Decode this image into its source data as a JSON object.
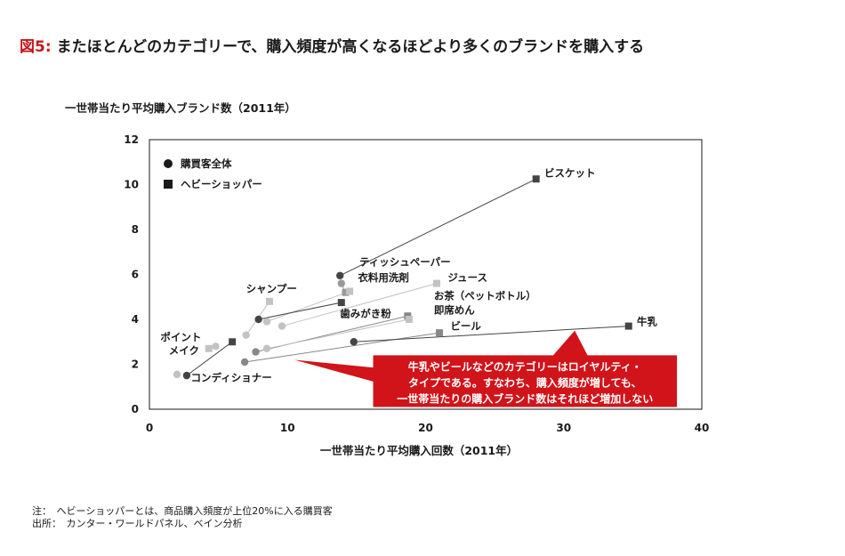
{
  "figure": {
    "label": "図5:",
    "title": "またほとんどのカテゴリーで、購入頻度が高くなるほどより多くのブランドを購入する"
  },
  "chart_data": {
    "type": "scatter",
    "ylabel": "一世帯当たり平均購入ブランド数（2011年）",
    "xlabel": "一世帯当たり平均購入回数（2011年）",
    "xlim": [
      0,
      40
    ],
    "ylim": [
      0,
      12
    ],
    "xticks": [
      "0",
      "10",
      "20",
      "30",
      "40"
    ],
    "yticks": [
      "0",
      "2",
      "4",
      "6",
      "8",
      "10",
      "12"
    ],
    "grid": false,
    "legend": [
      {
        "name": "購買客全体",
        "marker": "circle"
      },
      {
        "name": "ヘビーショッパー",
        "marker": "square"
      }
    ],
    "categories": [
      {
        "name": "ビスケット",
        "all": [
          13.8,
          5.95
        ],
        "heavy": [
          28.0,
          10.25
        ],
        "color": "#444444"
      },
      {
        "name": "ティッシュペーパー",
        "all": [
          13.9,
          5.6
        ],
        "heavy": [
          14.2,
          5.2
        ],
        "color": "#999999"
      },
      {
        "name": "衣料用洗剤",
        "all": [
          8.5,
          3.9
        ],
        "heavy": [
          14.5,
          5.25
        ],
        "color": "#c2c2c2"
      },
      {
        "name": "シャンプー",
        "all": [
          7.0,
          3.3
        ],
        "heavy": [
          8.7,
          4.8
        ],
        "color": "#c2c2c2"
      },
      {
        "name": "歯みがき粉",
        "all": [
          7.9,
          4.0
        ],
        "heavy": [
          13.9,
          4.75
        ],
        "color": "#444444"
      },
      {
        "name": "ジュース",
        "all": [
          9.6,
          3.7
        ],
        "heavy": [
          20.8,
          5.6
        ],
        "color": "#c2c2c2"
      },
      {
        "name": "お茶（ペットボトル）",
        "all": [
          7.7,
          2.55
        ],
        "heavy": [
          18.7,
          4.15
        ],
        "color": "#888888"
      },
      {
        "name": "即席めん",
        "all": [
          8.5,
          2.7
        ],
        "heavy": [
          18.8,
          4.0
        ],
        "color": "#c2c2c2"
      },
      {
        "name": "ビール",
        "all": [
          6.9,
          2.1
        ],
        "heavy": [
          21.0,
          3.4
        ],
        "color": "#888888"
      },
      {
        "name": "牛乳",
        "all": [
          14.8,
          3.0
        ],
        "heavy": [
          34.7,
          3.7
        ],
        "color": "#444444"
      },
      {
        "name": "ポイントメイク",
        "all": [
          4.8,
          2.8
        ],
        "heavy": [
          4.3,
          2.7
        ],
        "color": "#c2c2c2"
      },
      {
        "name": "コンディショナー",
        "all": [
          2.7,
          1.5
        ],
        "heavy": [
          6.0,
          3.0
        ],
        "color": "#444444"
      },
      {
        "name": "",
        "all": [
          2.0,
          1.55
        ],
        "heavy": [],
        "color": "#c2c2c2"
      }
    ],
    "point_labels": [
      {
        "text": "ビスケット",
        "x": 28.6,
        "y": 10.35
      },
      {
        "text": "ティッシュペーパー",
        "x": 15.2,
        "y": 6.4
      },
      {
        "text": "衣料用洗剤",
        "x": 15.1,
        "y": 5.7
      },
      {
        "text": "シャンプー",
        "x": 7.0,
        "y": 5.2
      },
      {
        "text": "歯みがき粉",
        "x": 13.8,
        "y": 4.1
      },
      {
        "text": "ジュース",
        "x": 21.6,
        "y": 5.7
      },
      {
        "text": "お茶（ペットボトル）",
        "x": 20.6,
        "y": 4.9
      },
      {
        "text": "即席めん",
        "x": 20.6,
        "y": 4.25
      },
      {
        "text": "ビール",
        "x": 21.8,
        "y": 3.55
      },
      {
        "text": "牛乳",
        "x": 35.3,
        "y": 3.75
      },
      {
        "text": "ポイント",
        "x": 0.8,
        "y": 3.05
      },
      {
        "text": "メイク",
        "x": 1.4,
        "y": 2.45
      },
      {
        "text": "コンディショナー",
        "x": 3.0,
        "y": 1.25
      }
    ],
    "callout": {
      "lines": [
        "牛乳やビールなどのカテゴリーはロイヤルティ・",
        "タイプである。すなわち、購入頻度が増しても、",
        "一世帯当たりの購入ブランド数はそれほど増加しない"
      ],
      "color": "#d0141a",
      "tip": [
        10.5,
        2.2
      ],
      "box": [
        16.2,
        0.1,
        38.2,
        2.4
      ]
    }
  },
  "notes": [
    "注：　ヘビーショッパーとは、商品購入頻度が上位20%に入る購買客",
    "出所：　カンター・ワールドパネル、ベイン分析"
  ]
}
